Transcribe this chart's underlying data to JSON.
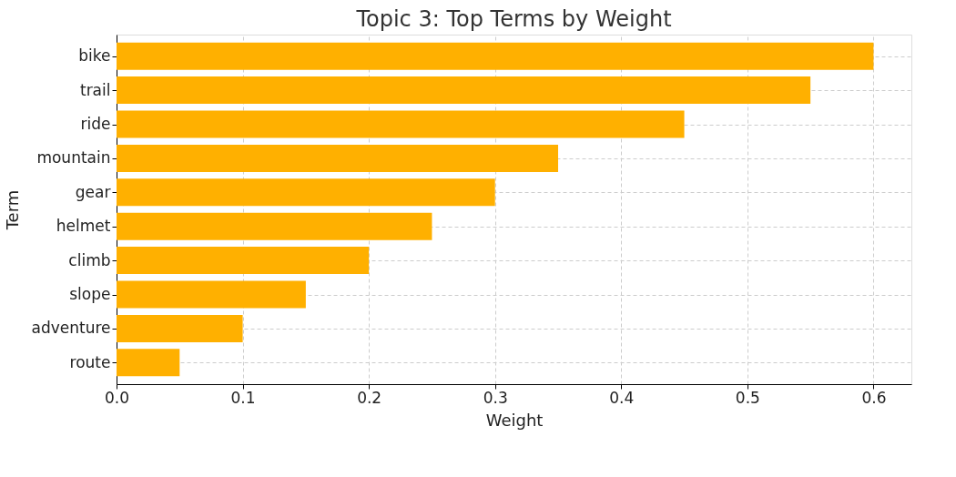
{
  "chart_data": {
    "type": "bar",
    "orientation": "horizontal",
    "title": "Topic 3: Top Terms by Weight",
    "xlabel": "Weight",
    "ylabel": "Term",
    "categories": [
      "bike",
      "trail",
      "ride",
      "mountain",
      "gear",
      "helmet",
      "climb",
      "slope",
      "adventure",
      "route"
    ],
    "values": [
      0.6,
      0.55,
      0.45,
      0.35,
      0.3,
      0.25,
      0.2,
      0.15,
      0.1,
      0.05
    ],
    "color": "#ffb000",
    "xlim": [
      0,
      0.63
    ],
    "xticks": [
      {
        "value": 0,
        "label": "0.0"
      },
      0.1,
      0.2,
      0.3,
      0.4,
      0.5,
      0.6
    ],
    "grid": true
  }
}
